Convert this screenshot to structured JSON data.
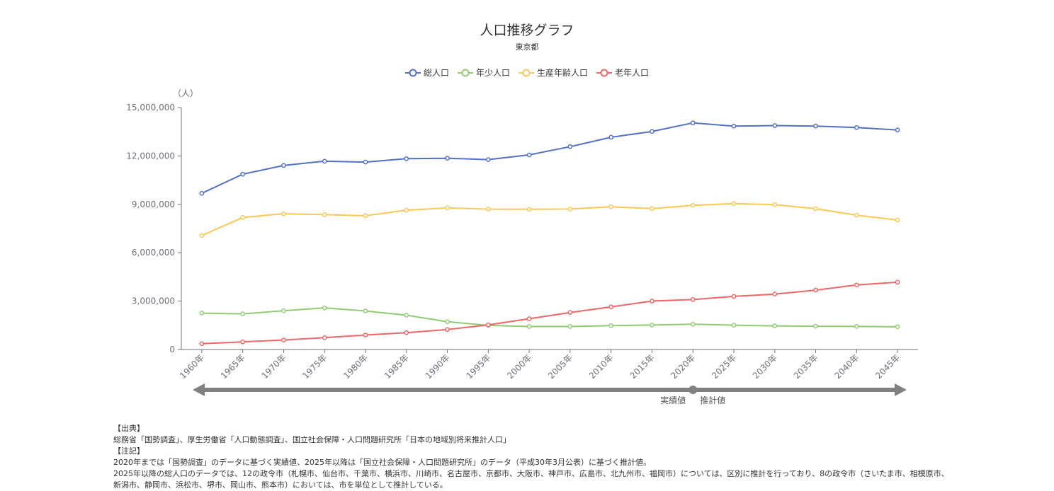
{
  "title": "人口推移グラフ",
  "subtitle": "東京都",
  "unit_label": "（人）",
  "legend": [
    {
      "name": "総人口",
      "color": "#5470c6"
    },
    {
      "name": "年少人口",
      "color": "#91cc75"
    },
    {
      "name": "生産年齢人口",
      "color": "#fac858"
    },
    {
      "name": "老年人口",
      "color": "#ee6666"
    }
  ],
  "chart_data": {
    "type": "line",
    "title": "人口推移グラフ",
    "subtitle": "東京都",
    "xlabel": "",
    "ylabel": "（人）",
    "ylim": [
      0,
      15000000
    ],
    "yticks": [
      "0",
      "3,000,000",
      "6,000,000",
      "9,000,000",
      "12,000,000",
      "15,000,000"
    ],
    "ytick_values": [
      0,
      3000000,
      6000000,
      9000000,
      12000000,
      15000000
    ],
    "categories": [
      "1960年",
      "1965年",
      "1970年",
      "1975年",
      "1980年",
      "1985年",
      "1990年",
      "1995年",
      "2000年",
      "2005年",
      "2010年",
      "2015年",
      "2020年",
      "2025年",
      "2030年",
      "2035年",
      "2040年",
      "2045年"
    ],
    "series": [
      {
        "name": "総人口",
        "color": "#5470c6",
        "values": [
          9683802,
          10869244,
          11408071,
          11673554,
          11618281,
          11829363,
          11855563,
          11773605,
          12064101,
          12576601,
          13159388,
          13515271,
          14047594,
          13845936,
          13882538,
          13851782,
          13758624,
          13605855
        ]
      },
      {
        "name": "年少人口",
        "color": "#91cc75",
        "values": [
          2256470,
          2209490,
          2404020,
          2582000,
          2388000,
          2126000,
          1723000,
          1496000,
          1424000,
          1426000,
          1477000,
          1518000,
          1569000,
          1510000,
          1465000,
          1441000,
          1431000,
          1407000
        ]
      },
      {
        "name": "生産年齢人口",
        "color": "#fac858",
        "values": [
          7067000,
          8186000,
          8417000,
          8360000,
          8296000,
          8637000,
          8778000,
          8703000,
          8695000,
          8711000,
          8850000,
          8734000,
          8939000,
          9044000,
          8981000,
          8728000,
          8327000,
          8025000
        ]
      },
      {
        "name": "老年人口",
        "color": "#ee6666",
        "values": [
          360000,
          474000,
          587000,
          731000,
          897000,
          1046000,
          1237000,
          1528000,
          1909000,
          2296000,
          2642000,
          3005000,
          3098000,
          3292000,
          3436000,
          3682000,
          4000000,
          4173000
        ]
      }
    ],
    "phase_split_category": "2020年",
    "phase_labels": {
      "actual": "実績値",
      "projected": "推計値"
    }
  },
  "notes": {
    "source_heading": "【出典】",
    "source_text": "総務省「国勢調査」、厚生労働省「人口動態調査」、国立社会保障・人口問題研究所「日本の地域別将来推計人口」",
    "notes_heading": "【注記】",
    "note_1": "2020年までは「国勢調査」のデータに基づく実績値、2025年以降は「国立社会保障・人口問題研究所」のデータ（平成30年3月公表）に基づく推計値。",
    "note_2": "2025年以降の総人口のデータでは、12の政令市（札幌市、仙台市、千葉市、横浜市、川崎市、名古屋市、京都市、大阪市、神戸市、広島市、北九州市、福岡市）については、区別に推計を行っており、8の政令市（さいたま市、相模原市、新潟市、静岡市、浜松市、堺市、岡山市、熊本市）においては、市を単位として推計している。"
  }
}
